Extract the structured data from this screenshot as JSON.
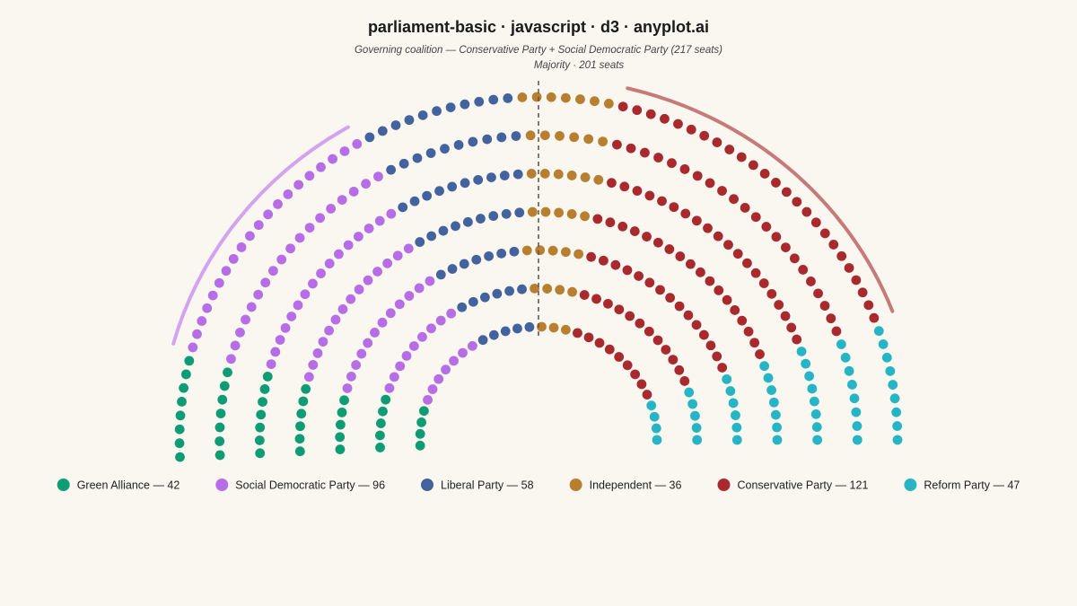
{
  "chart_data": {
    "type": "parliament",
    "title": "parliament-basic · javascript · d3 · anyplot.ai",
    "subtitle": "Governing coalition — Conservative Party + Social Democratic Party (217 seats)",
    "majority_label": "Majority · 201 seats",
    "total_seats": 400,
    "majority": 201,
    "parties": [
      {
        "name": "Green Alliance",
        "seats": 42,
        "color": "#0E9C74",
        "legend_label": "Green Alliance — 42"
      },
      {
        "name": "Social Democratic Party",
        "seats": 96,
        "color": "#B66DE6",
        "legend_label": "Social Democratic Party — 96"
      },
      {
        "name": "Liberal Party",
        "seats": 58,
        "color": "#43639F",
        "legend_label": "Liberal Party — 58"
      },
      {
        "name": "Independent",
        "seats": 36,
        "color": "#B87F30",
        "legend_label": "Independent — 36"
      },
      {
        "name": "Conservative Party",
        "seats": 121,
        "color": "#A82A2E",
        "legend_label": "Conservative Party — 121"
      },
      {
        "name": "Reform Party",
        "seats": 47,
        "color": "#27B5C5",
        "legend_label": "Reform Party — 47"
      }
    ],
    "coalition": [
      "Social Democratic Party",
      "Conservative Party"
    ],
    "coalition_arc_colors": {
      "Social Democratic Party": "#D4A3EF",
      "Conservative Party": "#C77A7A"
    }
  }
}
